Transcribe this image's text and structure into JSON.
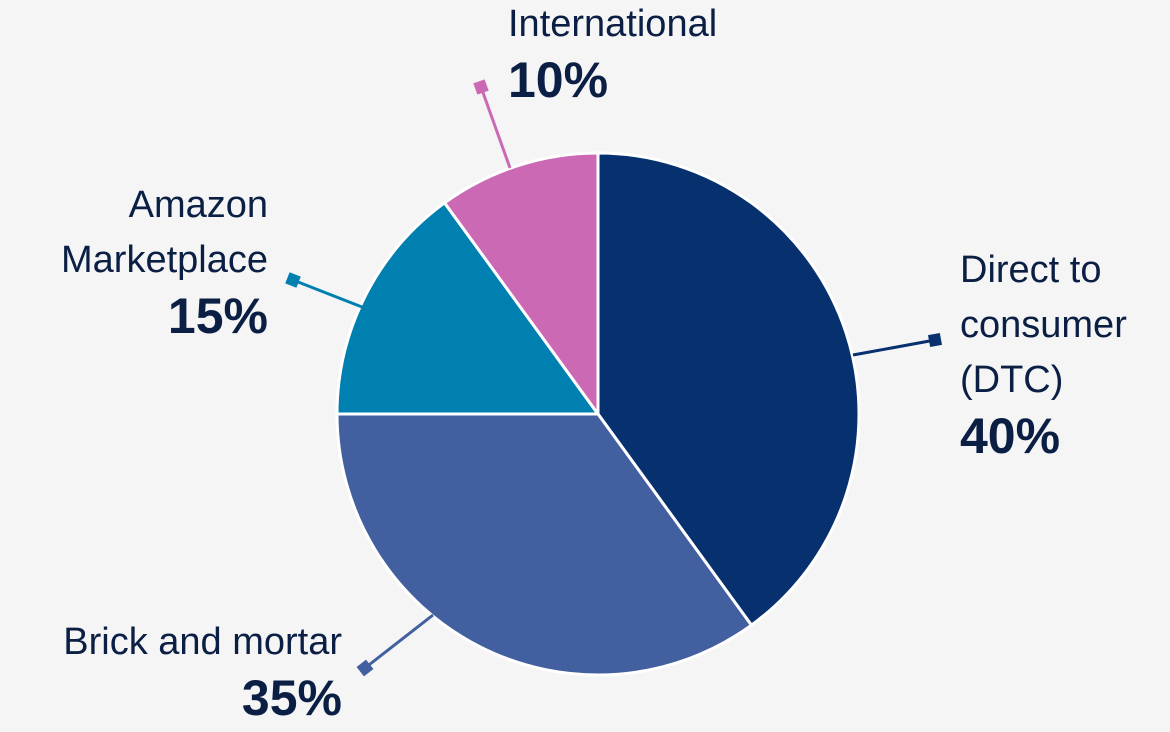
{
  "chart_data": {
    "type": "pie",
    "categories": [
      "Direct to consumer (DTC)",
      "Brick and mortar",
      "Amazon Marketplace",
      "International"
    ],
    "values": [
      40,
      35,
      15,
      10
    ],
    "value_labels": [
      "40%",
      "35%",
      "15%",
      "10%"
    ],
    "colors": [
      "#06306e",
      "#425fa0",
      "#0080b0",
      "#cc69b4"
    ]
  }
}
